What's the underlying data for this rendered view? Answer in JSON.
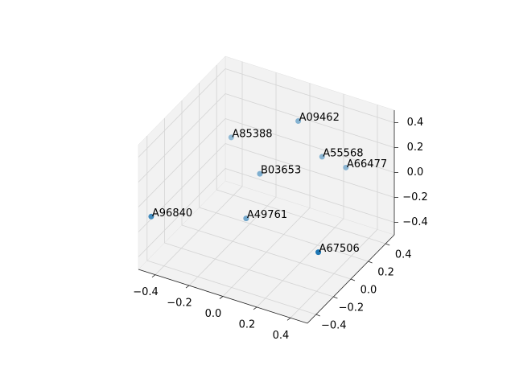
{
  "chart_data": {
    "type": "scatter3d",
    "xlim": [
      -0.5,
      0.5
    ],
    "ylim": [
      -0.5,
      0.5
    ],
    "zlim": [
      -0.5,
      0.5
    ],
    "xticks": [
      -0.4,
      -0.2,
      0.0,
      0.2,
      0.4
    ],
    "yticks": [
      -0.4,
      -0.2,
      0.0,
      0.2,
      0.4
    ],
    "zticks": [
      -0.4,
      -0.2,
      0.0,
      0.2,
      0.4
    ],
    "grid": true,
    "labels": [
      "A96840",
      "A49761",
      "B03653",
      "A85388",
      "A09462",
      "A55568",
      "A66477",
      "A67506"
    ],
    "series": [
      {
        "color": "#1f77b4",
        "x": [
          -0.45,
          -0.13,
          -0.1,
          -0.28,
          0.06,
          0.16,
          0.26,
          0.4
        ],
        "y": [
          -0.45,
          0.02,
          0.12,
          0.14,
          0.25,
          0.33,
          0.41,
          -0.18
        ],
        "z": [
          -0.09,
          -0.3,
          0.0,
          0.2,
          0.4,
          0.1,
          0.0,
          -0.2
        ]
      }
    ]
  }
}
